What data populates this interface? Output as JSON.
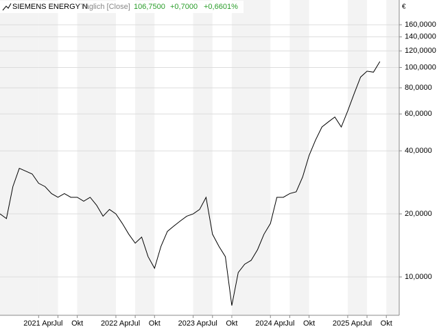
{
  "chart_data": {
    "type": "line",
    "title": "SIEMENS ENERGY N",
    "subtitle": "Täglich [Close]",
    "header_values": [
      "106,7500",
      "+0,7000",
      "+0,6601%"
    ],
    "currency": "€",
    "log_scale": true,
    "grid": true,
    "x": [
      "2020-10",
      "2020-11",
      "2020-12",
      "2021-01",
      "2021-02",
      "2021-03",
      "2021-04",
      "2021-05",
      "2021-06",
      "2021-07",
      "2021-08",
      "2021-09",
      "2021-10",
      "2021-11",
      "2021-12",
      "2022-01",
      "2022-02",
      "2022-03",
      "2022-04",
      "2022-05",
      "2022-06",
      "2022-07",
      "2022-08",
      "2022-09",
      "2022-10",
      "2022-11",
      "2022-12",
      "2023-01",
      "2023-02",
      "2023-03",
      "2023-04",
      "2023-05",
      "2023-06",
      "2023-07",
      "2023-08",
      "2023-09",
      "2023-10",
      "2023-11",
      "2023-12",
      "2024-01",
      "2024-02",
      "2024-03",
      "2024-04",
      "2024-05",
      "2024-06",
      "2024-07",
      "2024-08",
      "2024-09",
      "2024-10",
      "2024-11",
      "2024-12",
      "2025-01",
      "2025-02",
      "2025-03",
      "2025-04",
      "2025-05",
      "2025-06",
      "2025-07",
      "2025-08",
      "2025-09"
    ],
    "series": [
      {
        "name": "SIEMENS ENERGY N",
        "color": "#000000",
        "values": [
          20,
          19,
          27,
          33,
          32,
          31,
          28,
          27,
          25,
          24,
          25,
          24,
          24,
          23,
          24,
          22,
          19.5,
          21,
          20,
          18,
          16,
          14.5,
          15.5,
          12.5,
          11,
          14,
          16.5,
          17.5,
          18.5,
          19.5,
          20,
          21,
          24,
          16,
          14,
          12.5,
          7.3,
          10.5,
          11.5,
          12,
          13.5,
          16,
          18,
          24,
          24,
          25,
          25.5,
          30,
          38,
          45,
          52,
          55,
          58,
          52,
          62,
          75,
          90,
          96,
          95,
          106.75
        ]
      }
    ],
    "xlim": [
      "2020-10",
      "2025-12"
    ],
    "xticks": [
      {
        "value": "2021-04",
        "label": "2021 Apr"
      },
      {
        "value": "2021-07",
        "label": "Jul"
      },
      {
        "value": "2021-10",
        "label": "Okt"
      },
      {
        "value": "2022-04",
        "label": "2022 Apr"
      },
      {
        "value": "2022-07",
        "label": "Jul"
      },
      {
        "value": "2022-10",
        "label": "Okt"
      },
      {
        "value": "2023-04",
        "label": "2023 Apr"
      },
      {
        "value": "2023-07",
        "label": "Jul"
      },
      {
        "value": "2023-10",
        "label": "Okt"
      },
      {
        "value": "2024-04",
        "label": "2024 Apr"
      },
      {
        "value": "2024-07",
        "label": "Jul"
      },
      {
        "value": "2024-10",
        "label": "Okt"
      },
      {
        "value": "2025-04",
        "label": "2025 Apr"
      },
      {
        "value": "2025-07",
        "label": "Jul"
      },
      {
        "value": "2025-10",
        "label": "Okt"
      }
    ],
    "ylim": [
      6.56,
      210
    ],
    "yticks": [
      {
        "value": 10,
        "label": "10,0000"
      },
      {
        "value": 20,
        "label": "20,0000"
      },
      {
        "value": 40,
        "label": "40,0000"
      },
      {
        "value": 60,
        "label": "60,0000"
      },
      {
        "value": 80,
        "label": "80,0000"
      },
      {
        "value": 100,
        "label": "100,0000"
      },
      {
        "value": 120,
        "label": "120,0000"
      },
      {
        "value": 140,
        "label": "140,0000"
      },
      {
        "value": 160,
        "label": "160,0000"
      }
    ]
  }
}
